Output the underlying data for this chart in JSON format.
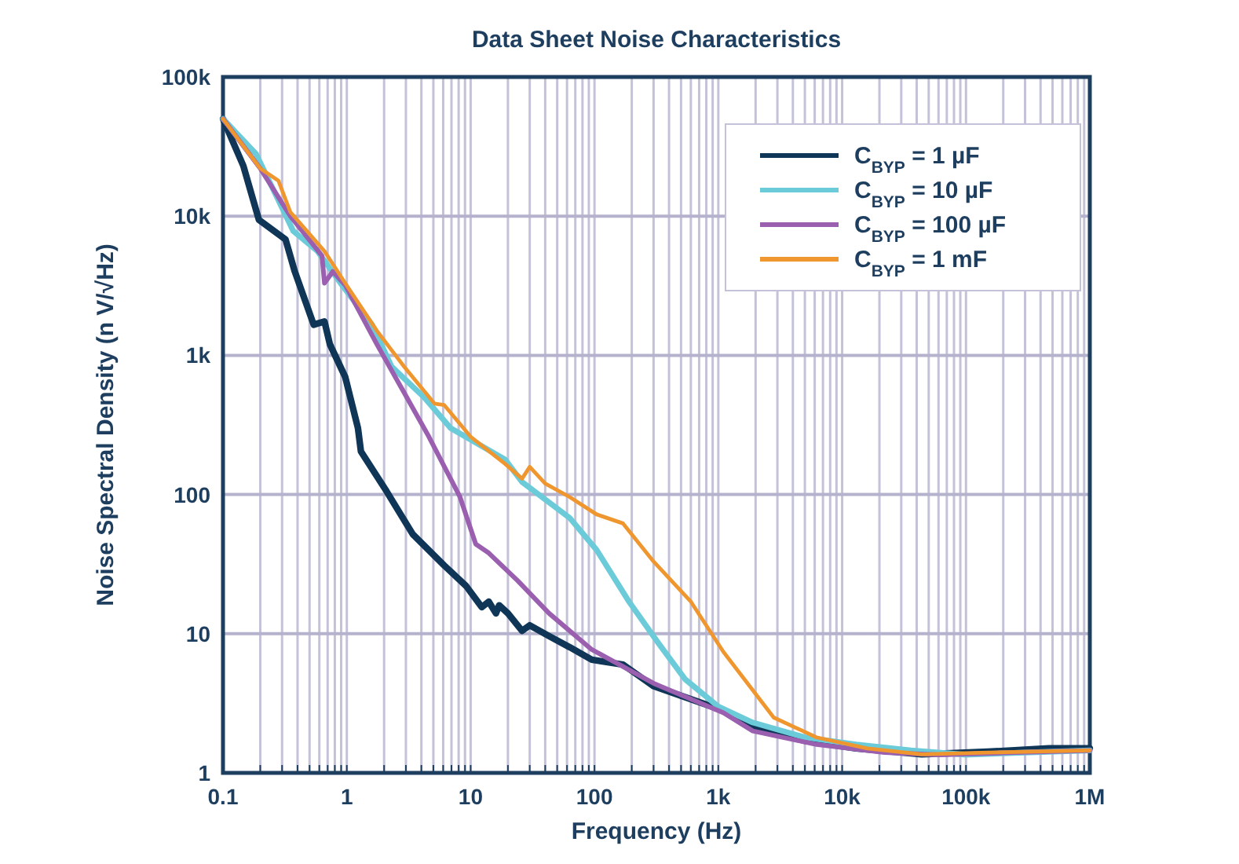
{
  "chart_data": {
    "type": "line",
    "title": "Data Sheet Noise Characteristics",
    "xlabel": "Frequency (Hz)",
    "ylabel": "Noise Spectral Density (n V/√Hz)",
    "log": "xy",
    "grid": true,
    "legend": "top right",
    "line_style": "solid",
    "marker": "none",
    "xlim": [
      0.1,
      1000000
    ],
    "ylim": [
      1,
      100000
    ],
    "xticks": [
      0.1,
      {
        "value": 0.2,
        "label": null
      },
      {
        "value": 0.3,
        "label": null
      },
      {
        "value": 0.4,
        "label": null
      },
      {
        "value": 0.5,
        "label": null
      },
      {
        "value": 0.6,
        "label": null
      },
      {
        "value": 0.7,
        "label": null
      },
      {
        "value": 0.8,
        "label": null
      },
      {
        "value": 0.9,
        "label": null
      },
      1,
      {
        "value": 2,
        "label": null
      },
      {
        "value": 3,
        "label": null
      },
      {
        "value": 4,
        "label": null
      },
      {
        "value": 5,
        "label": null
      },
      {
        "value": 6,
        "label": null
      },
      {
        "value": 7,
        "label": null
      },
      {
        "value": 8,
        "label": null
      },
      {
        "value": 9,
        "label": null
      },
      10,
      {
        "value": 20,
        "label": null
      },
      {
        "value": 30,
        "label": null
      },
      {
        "value": 40,
        "label": null
      },
      {
        "value": 50,
        "label": null
      },
      {
        "value": 60,
        "label": null
      },
      {
        "value": 70,
        "label": null
      },
      {
        "value": 80,
        "label": null
      },
      {
        "value": 90,
        "label": null
      },
      100,
      {
        "value": 200,
        "label": null
      },
      {
        "value": 300,
        "label": null
      },
      {
        "value": 400,
        "label": null
      },
      {
        "value": 500,
        "label": null
      },
      {
        "value": 600,
        "label": null
      },
      {
        "value": 700,
        "label": null
      },
      {
        "value": 800,
        "label": null
      },
      {
        "value": 900,
        "label": null
      },
      {
        "value": 1000,
        "label": "1k"
      },
      {
        "value": 2000,
        "label": null
      },
      {
        "value": 3000,
        "label": null
      },
      {
        "value": 4000,
        "label": null
      },
      {
        "value": 5000,
        "label": null
      },
      {
        "value": 6000,
        "label": null
      },
      {
        "value": 7000,
        "label": null
      },
      {
        "value": 8000,
        "label": null
      },
      {
        "value": 9000,
        "label": null
      },
      {
        "value": 10000,
        "label": "10k"
      },
      {
        "value": 20000,
        "label": null
      },
      {
        "value": 30000,
        "label": null
      },
      {
        "value": 40000,
        "label": null
      },
      {
        "value": 50000,
        "label": null
      },
      {
        "value": 60000,
        "label": null
      },
      {
        "value": 70000,
        "label": null
      },
      {
        "value": 80000,
        "label": null
      },
      {
        "value": 90000,
        "label": null
      },
      {
        "value": 100000,
        "label": "100k"
      },
      {
        "value": 200000,
        "label": null
      },
      {
        "value": 300000,
        "label": null
      },
      {
        "value": 400000,
        "label": null
      },
      {
        "value": 500000,
        "label": null
      },
      {
        "value": 600000,
        "label": null
      },
      {
        "value": 700000,
        "label": null
      },
      {
        "value": 800000,
        "label": null
      },
      {
        "value": 900000,
        "label": null
      },
      {
        "value": 1000000,
        "label": "1M"
      }
    ],
    "yticks": [
      1,
      10,
      100,
      {
        "value": 1000,
        "label": "1k"
      },
      {
        "value": 10000,
        "label": "10k"
      },
      {
        "value": 100000,
        "label": "100k"
      }
    ],
    "series": [
      {
        "name": "C$_{BYP}$ = 1 µF",
        "color": "#0f3557",
        "x": [
          0.1,
          0.146,
          0.195,
          0.32,
          0.38,
          0.54,
          0.66,
          0.73,
          0.97,
          1.23,
          1.3,
          2.1,
          3.4,
          6.1,
          9.2,
          12.3,
          14,
          16,
          17,
          20,
          26,
          30,
          43,
          63,
          95,
          170,
          300,
          1100,
          2000,
          5000,
          13000,
          44000,
          150000,
          470000,
          1000000
        ],
        "values": [
          50000,
          23000,
          9400,
          6800,
          4000,
          1660,
          1750,
          1200,
          700,
          300,
          204,
          105,
          52,
          31,
          22,
          15.5,
          17,
          14,
          16,
          14,
          10.5,
          11.5,
          9.6,
          8,
          6.5,
          6,
          4.2,
          2.8,
          2.1,
          1.7,
          1.5,
          1.36,
          1.42,
          1.5,
          1.5
        ]
      },
      {
        "name": "C$_{BYP}$ = 10 µF",
        "color": "#6ccbd8",
        "x": [
          0.1,
          0.185,
          0.37,
          0.58,
          0.89,
          1.6,
          2.3,
          4.2,
          6.9,
          19,
          26,
          63,
          104,
          190,
          330,
          540,
          1000,
          1900,
          5000,
          13000,
          36000,
          100000,
          300000,
          1000000
        ],
        "values": [
          50000,
          28000,
          7800,
          5600,
          3300,
          1660,
          830,
          500,
          300,
          178,
          123,
          68,
          40,
          17,
          8.5,
          4.7,
          3,
          2.3,
          1.8,
          1.6,
          1.45,
          1.35,
          1.4,
          1.45
        ]
      },
      {
        "name": "C$_{BYP}$ = 100 µF",
        "color": "#9b5fb0",
        "x": [
          0.1,
          0.2,
          0.35,
          0.63,
          0.66,
          0.77,
          0.97,
          1.75,
          2.9,
          4.6,
          8.2,
          11,
          14,
          24,
          43,
          95,
          300,
          1100,
          1900,
          6200,
          22000,
          60000,
          250000,
          1000000
        ],
        "values": [
          50000,
          22000,
          10000,
          5200,
          3300,
          4000,
          3200,
          1200,
          540,
          260,
          96,
          44,
          38,
          24,
          14,
          7.7,
          4.4,
          2.7,
          2,
          1.6,
          1.4,
          1.35,
          1.4,
          1.45
        ]
      },
      {
        "name": "C$_{BYP}$ = 1 mF",
        "color": "#f0962e",
        "x": [
          0.1,
          0.2,
          0.28,
          0.35,
          0.66,
          0.97,
          1.75,
          2.9,
          5.1,
          6.1,
          10,
          19,
          26,
          30,
          40,
          63,
          104,
          170,
          300,
          600,
          1100,
          2800,
          6200,
          16000,
          44000,
          150000,
          1000000
        ],
        "values": [
          50000,
          22000,
          18000,
          10700,
          5600,
          3300,
          1500,
          830,
          450,
          440,
          260,
          166,
          130,
          158,
          120,
          96,
          72,
          62,
          33,
          17,
          7.4,
          2.5,
          1.8,
          1.5,
          1.36,
          1.4,
          1.45
        ]
      }
    ]
  }
}
